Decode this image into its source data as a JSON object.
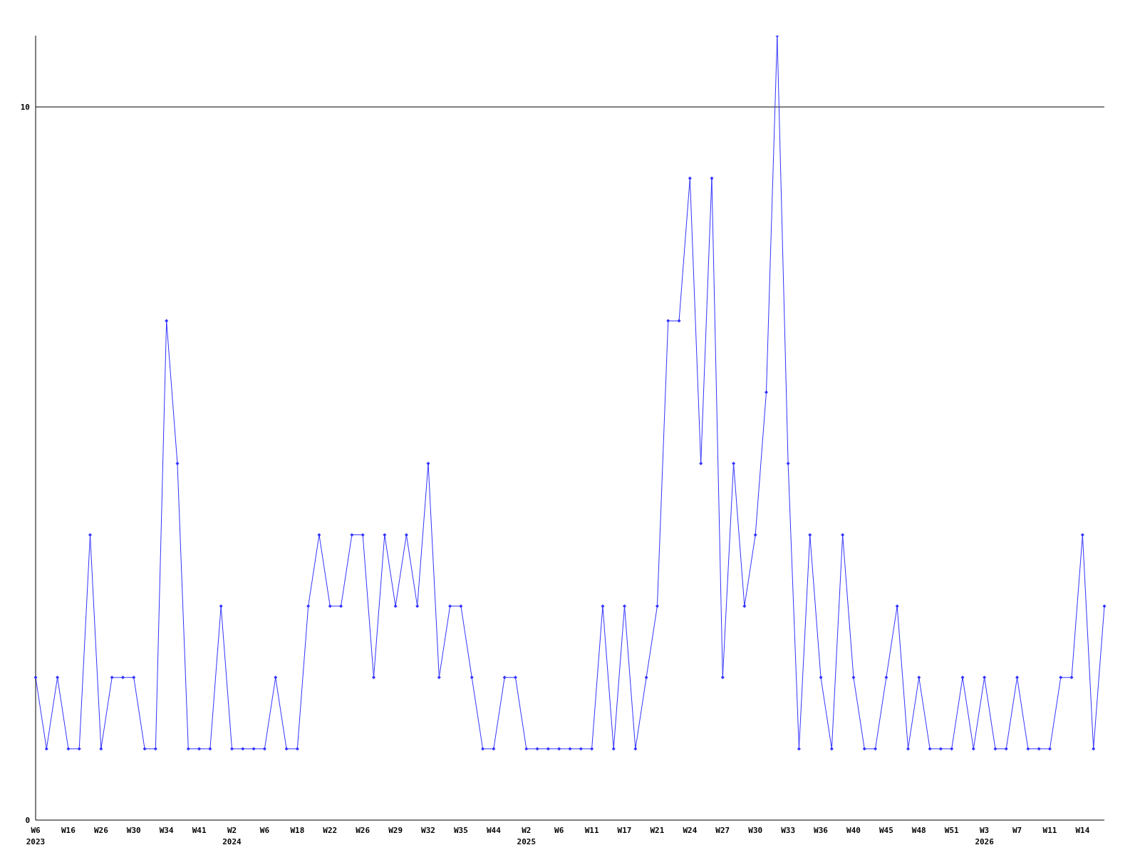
{
  "chart_data": {
    "type": "line",
    "categories": [
      "W6\n2023",
      null,
      null,
      "W16",
      null,
      null,
      "W26",
      null,
      null,
      "W30",
      null,
      null,
      "W34",
      null,
      null,
      "W41",
      null,
      null,
      "W2\n2024",
      null,
      null,
      "W6",
      null,
      null,
      "W18",
      null,
      null,
      "W22",
      null,
      null,
      "W26",
      null,
      null,
      "W29",
      null,
      null,
      "W32",
      null,
      null,
      "W35",
      null,
      null,
      "W44",
      null,
      null,
      "W2\n2025",
      null,
      null,
      "W6",
      null,
      null,
      "W11",
      null,
      null,
      "W17",
      null,
      null,
      "W21",
      null,
      null,
      "W24",
      null,
      null,
      "W27",
      null,
      null,
      "W30",
      null,
      null,
      "W33",
      null,
      null,
      "W36",
      null,
      null,
      "W40",
      null,
      null,
      "W45",
      null,
      null,
      "W48",
      null,
      null,
      "W51",
      null,
      null,
      "W3\n2026",
      null,
      null,
      "W7",
      null,
      null,
      "W11",
      null,
      null,
      "W14",
      null,
      null
    ],
    "series": [
      {
        "color": "#3333ff",
        "values": [
          2,
          1,
          2,
          1,
          1,
          4,
          1,
          2,
          2,
          2,
          1,
          1,
          7,
          5,
          1,
          1,
          1,
          3,
          1,
          1,
          1,
          1,
          2,
          1,
          1,
          3,
          4,
          3,
          3,
          4,
          4,
          2,
          4,
          3,
          4,
          3,
          5,
          2,
          3,
          3,
          2,
          1,
          1,
          2,
          2,
          1,
          1,
          1,
          1,
          1,
          1,
          1,
          3,
          1,
          3,
          1,
          2,
          3,
          7,
          7,
          9,
          5,
          9,
          2,
          5,
          3,
          4,
          6,
          11,
          5,
          1,
          4,
          2,
          1,
          4,
          2,
          1,
          1,
          2,
          3,
          1,
          2,
          1,
          1,
          1,
          2,
          1,
          2,
          1,
          1,
          2,
          1,
          1,
          1,
          2,
          2,
          4,
          1,
          3
        ]
      }
    ],
    "ylim": [
      0,
      11
    ],
    "yticks": [
      0,
      10
    ],
    "grid": "y",
    "marker": "diamond",
    "line_style": "solid"
  }
}
